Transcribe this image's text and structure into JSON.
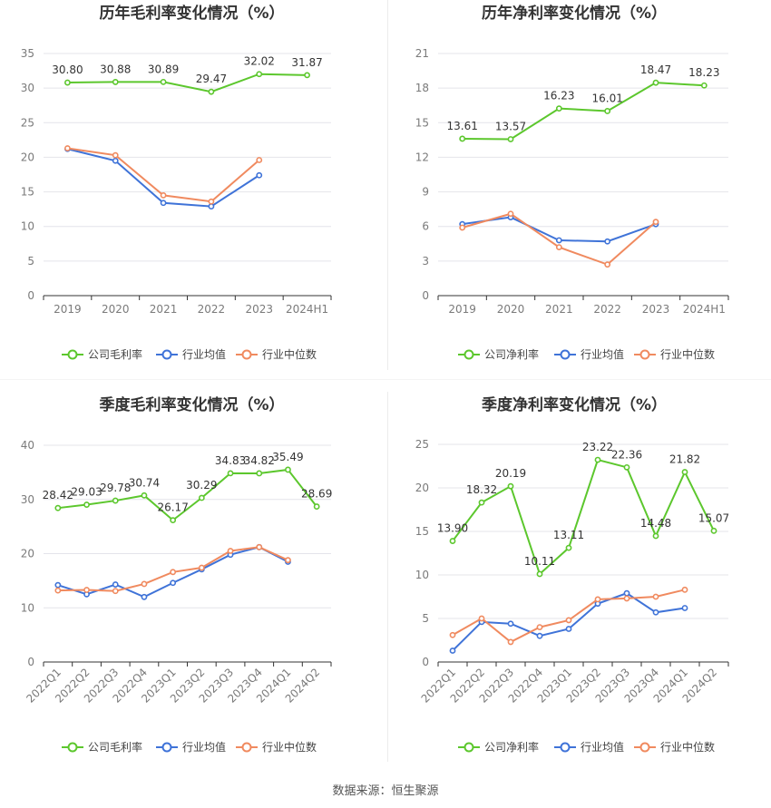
{
  "source_text": "数据来源：恒生聚源",
  "colors": {
    "company": "#5cc72d",
    "avg": "#3f73d8",
    "median": "#f08a5f",
    "grid": "#e4e4ea",
    "axis": "#7a7a7a",
    "title": "#333333"
  },
  "chart_data": [
    {
      "type": "line",
      "title": "历年毛利率变化情况（%）",
      "categories": [
        "2019",
        "2020",
        "2021",
        "2022",
        "2023",
        "2024H1"
      ],
      "ylim": [
        0,
        35
      ],
      "yticks": [
        0,
        5,
        10,
        15,
        20,
        25,
        30,
        35
      ],
      "grid": true,
      "legend_position": "bottom",
      "series": [
        {
          "name": "公司毛利率",
          "values": [
            30.8,
            30.88,
            30.89,
            29.47,
            32.02,
            31.87
          ],
          "labels": [
            "30.80",
            "30.88",
            "30.89",
            "29.47",
            "32.02",
            "31.87"
          ]
        },
        {
          "name": "行业均值",
          "values": [
            21.2,
            19.5,
            13.4,
            12.9,
            17.4,
            null
          ]
        },
        {
          "name": "行业中位数",
          "values": [
            21.3,
            20.3,
            14.5,
            13.6,
            19.6,
            null
          ]
        }
      ]
    },
    {
      "type": "line",
      "title": "历年净利率变化情况（%）",
      "categories": [
        "2019",
        "2020",
        "2021",
        "2022",
        "2023",
        "2024H1"
      ],
      "ylim": [
        0,
        21
      ],
      "yticks": [
        0,
        3,
        6,
        9,
        12,
        15,
        18,
        21
      ],
      "grid": true,
      "legend_position": "bottom",
      "series": [
        {
          "name": "公司净利率",
          "values": [
            13.61,
            13.57,
            16.23,
            16.01,
            18.47,
            18.23
          ],
          "labels": [
            "13.61",
            "13.57",
            "16.23",
            "16.01",
            "18.47",
            "18.23"
          ]
        },
        {
          "name": "行业均值",
          "values": [
            6.2,
            6.8,
            4.8,
            4.7,
            6.2,
            null
          ]
        },
        {
          "name": "行业中位数",
          "values": [
            5.9,
            7.1,
            4.2,
            2.7,
            6.4,
            null
          ]
        }
      ]
    },
    {
      "type": "line",
      "title": "季度毛利率变化情况（%）",
      "categories": [
        "2022Q1",
        "2022Q2",
        "2022Q3",
        "2022Q4",
        "2023Q1",
        "2023Q2",
        "2023Q3",
        "2023Q4",
        "2024Q1",
        "2024Q2"
      ],
      "ylim": [
        0,
        40
      ],
      "yticks": [
        0,
        10,
        20,
        30,
        40
      ],
      "grid": true,
      "legend_position": "bottom",
      "series": [
        {
          "name": "公司毛利率",
          "values": [
            28.42,
            29.03,
            29.78,
            30.74,
            26.17,
            30.29,
            34.83,
            34.82,
            35.49,
            28.69
          ],
          "labels": [
            "28.42",
            "29.03",
            "29.78",
            "30.74",
            "26.17",
            "30.29",
            "34.83",
            "34.82",
            "35.49",
            "28.69"
          ]
        },
        {
          "name": "行业均值",
          "values": [
            14.2,
            12.5,
            14.3,
            12.0,
            14.6,
            17.1,
            19.8,
            21.2,
            18.5,
            null
          ]
        },
        {
          "name": "行业中位数",
          "values": [
            13.2,
            13.3,
            13.1,
            14.4,
            16.6,
            17.4,
            20.5,
            21.2,
            18.8,
            null
          ]
        }
      ]
    },
    {
      "type": "line",
      "title": "季度净利率变化情况（%）",
      "categories": [
        "2022Q1",
        "2022Q2",
        "2022Q3",
        "2022Q4",
        "2023Q1",
        "2023Q2",
        "2023Q3",
        "2023Q4",
        "2024Q1",
        "2024Q2"
      ],
      "ylim": [
        0,
        25
      ],
      "yticks": [
        0,
        5,
        10,
        15,
        20,
        25
      ],
      "grid": true,
      "legend_position": "bottom",
      "series": [
        {
          "name": "公司净利率",
          "values": [
            13.9,
            18.32,
            20.19,
            10.11,
            13.11,
            23.22,
            22.36,
            14.48,
            21.82,
            15.07
          ],
          "labels": [
            "13.90",
            "18.32",
            "20.19",
            "10.11",
            "13.11",
            "23.22",
            "22.36",
            "14.48",
            "21.82",
            "15.07"
          ]
        },
        {
          "name": "行业均值",
          "values": [
            1.3,
            4.6,
            4.4,
            3.0,
            3.8,
            6.7,
            7.9,
            5.7,
            6.2,
            null
          ]
        },
        {
          "name": "行业中位数",
          "values": [
            3.1,
            5.0,
            2.3,
            4.0,
            4.8,
            7.2,
            7.3,
            7.5,
            8.3,
            null
          ]
        }
      ]
    }
  ]
}
